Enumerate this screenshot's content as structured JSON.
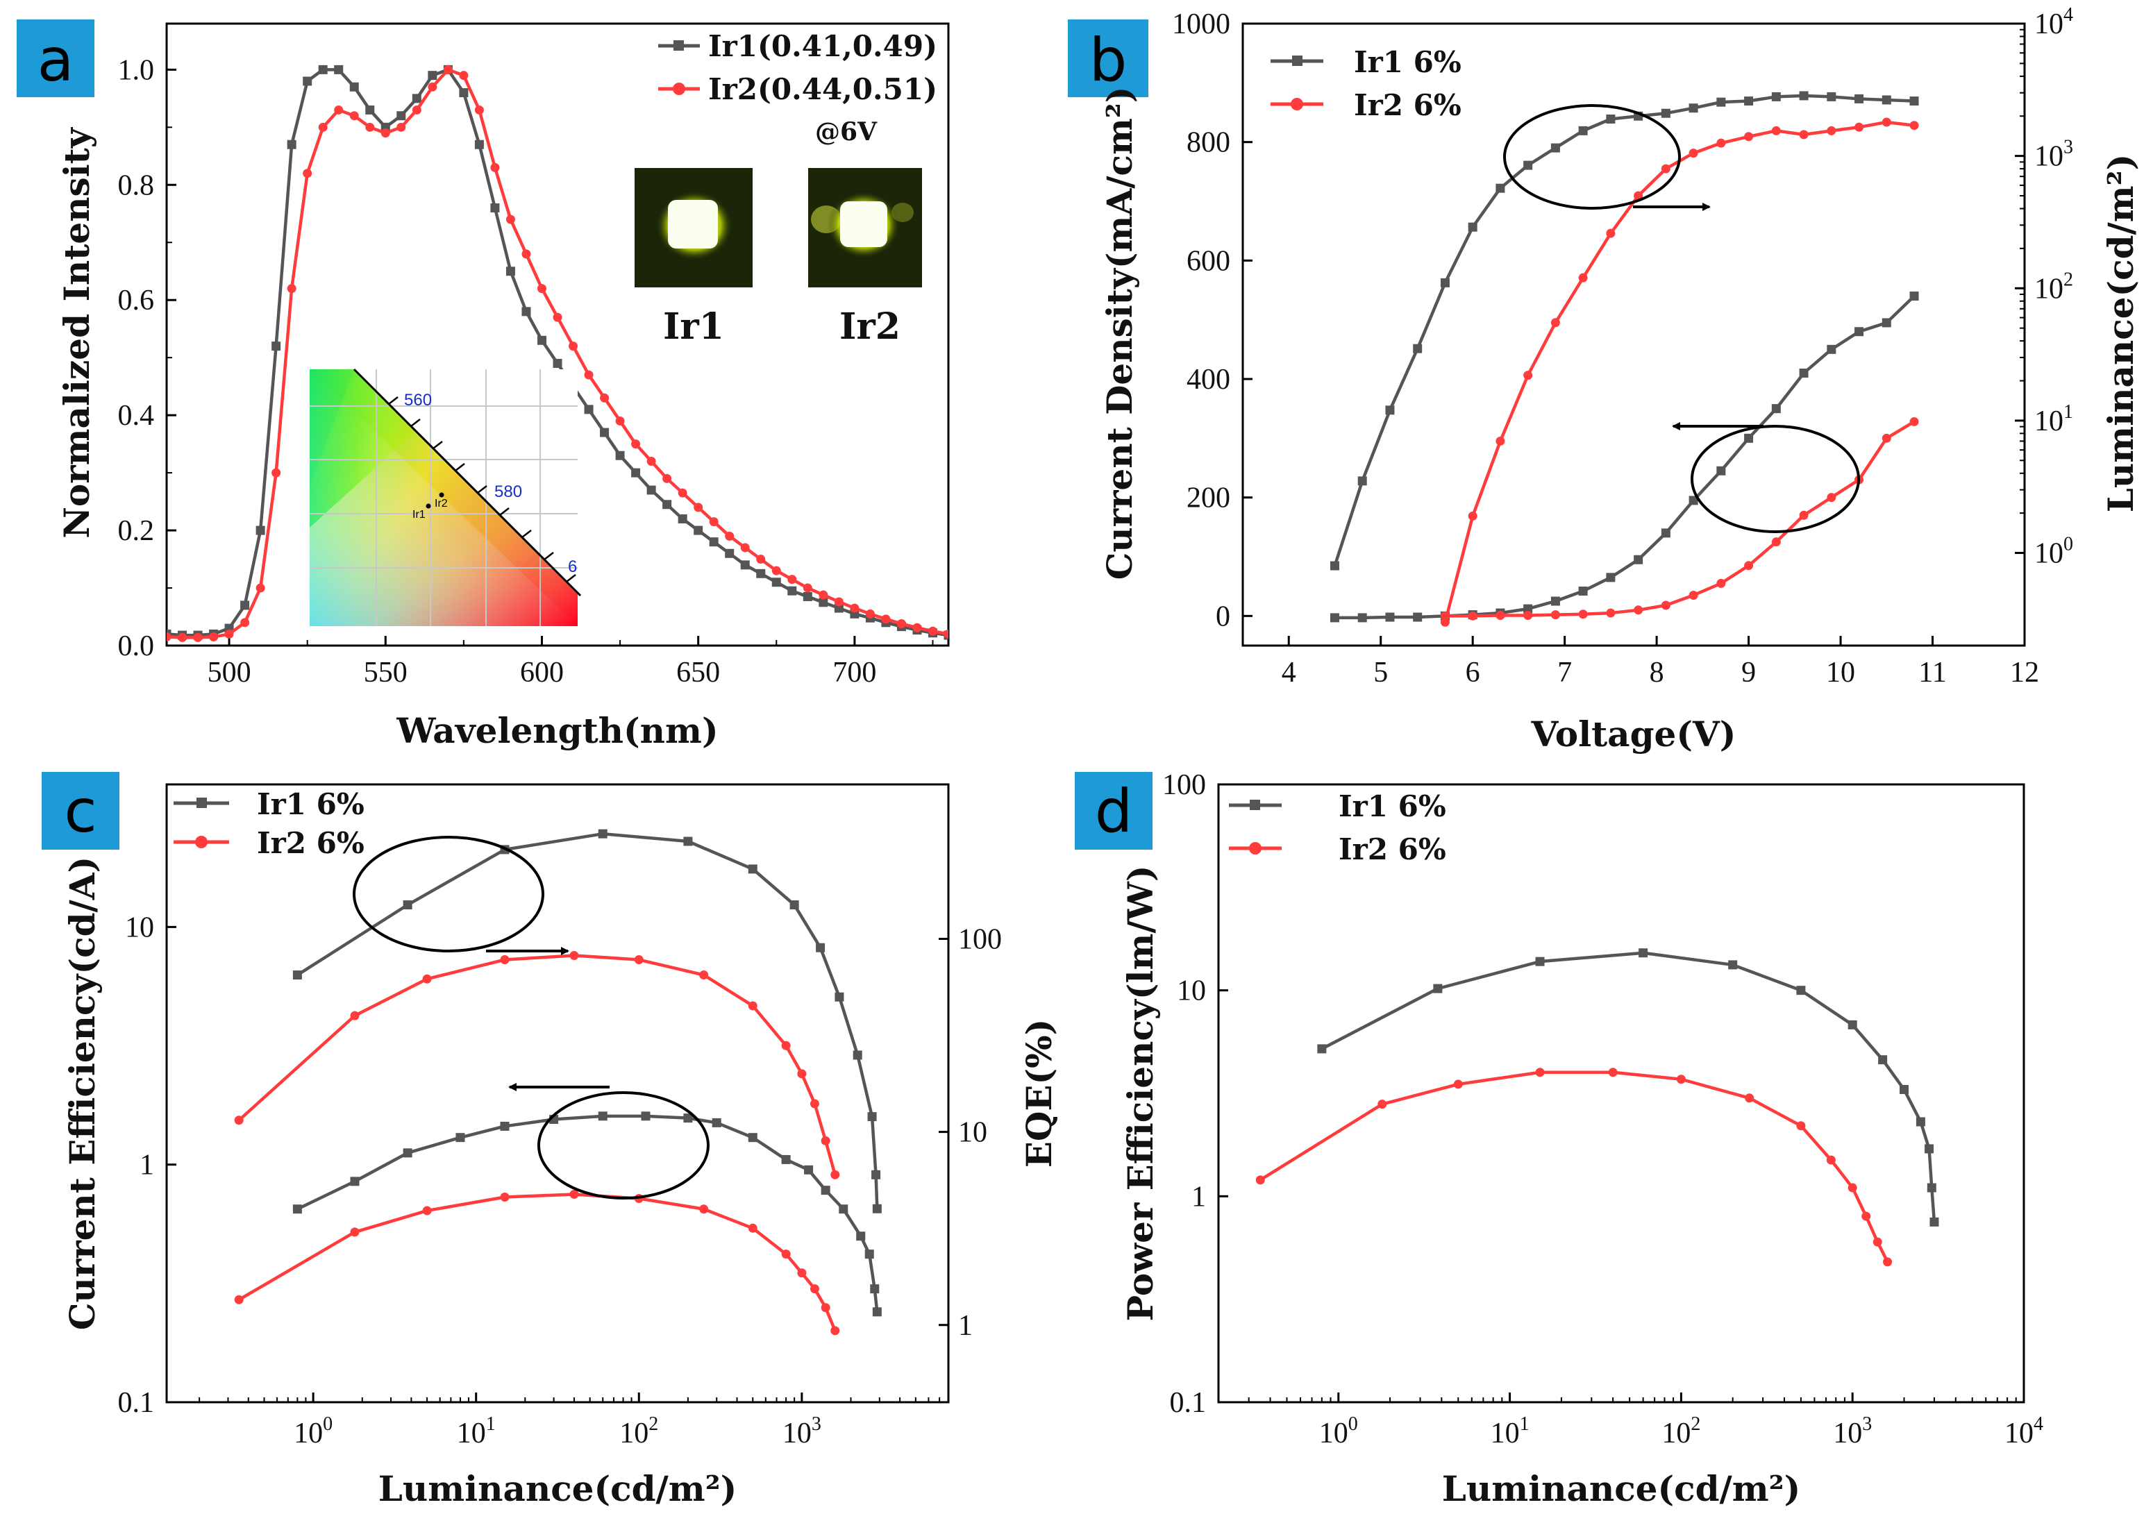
{
  "colors": {
    "ir1": "#555555",
    "ir2": "#ff3b3b",
    "badge": "#1e9bd7",
    "annotation": "#000000"
  },
  "panels": {
    "a": "a",
    "b": "b",
    "c": "c",
    "d": "d"
  },
  "chart_data": [
    {
      "id": "a",
      "type": "line",
      "xlabel": "Wavelength(nm)",
      "ylabel": "Normalized Intensity",
      "xlim": [
        480,
        730
      ],
      "ylim": [
        0,
        1.08
      ],
      "xticks": [
        500,
        550,
        600,
        650,
        700
      ],
      "yticks": [
        0.0,
        0.2,
        0.4,
        0.6,
        0.8,
        1.0
      ],
      "ytick_labels": [
        "0.0",
        "0.2",
        "0.4",
        "0.6",
        "0.8",
        "1.0"
      ],
      "legend_note": "@6V",
      "series": [
        {
          "name": "Ir1(0.41,0.49)",
          "x": [
            480,
            485,
            490,
            495,
            500,
            505,
            510,
            515,
            520,
            525,
            530,
            535,
            540,
            545,
            550,
            555,
            560,
            565,
            570,
            575,
            580,
            585,
            590,
            595,
            600,
            605,
            610,
            615,
            620,
            625,
            630,
            635,
            640,
            645,
            650,
            655,
            660,
            665,
            670,
            675,
            680,
            685,
            690,
            695,
            700,
            705,
            710,
            715,
            720,
            725,
            730
          ],
          "y": [
            0.02,
            0.018,
            0.018,
            0.02,
            0.03,
            0.07,
            0.2,
            0.52,
            0.87,
            0.98,
            1.0,
            1.0,
            0.97,
            0.93,
            0.9,
            0.92,
            0.95,
            0.99,
            1.0,
            0.96,
            0.87,
            0.76,
            0.65,
            0.58,
            0.53,
            0.49,
            0.45,
            0.41,
            0.37,
            0.33,
            0.3,
            0.27,
            0.245,
            0.22,
            0.2,
            0.18,
            0.16,
            0.14,
            0.125,
            0.11,
            0.095,
            0.085,
            0.075,
            0.065,
            0.055,
            0.048,
            0.04,
            0.033,
            0.027,
            0.022,
            0.018
          ]
        },
        {
          "name": "Ir2(0.44,0.51)",
          "x": [
            480,
            485,
            490,
            495,
            500,
            505,
            510,
            515,
            520,
            525,
            530,
            535,
            540,
            545,
            550,
            555,
            560,
            565,
            570,
            575,
            580,
            585,
            590,
            595,
            600,
            605,
            610,
            615,
            620,
            625,
            630,
            635,
            640,
            645,
            650,
            655,
            660,
            665,
            670,
            675,
            680,
            685,
            690,
            695,
            700,
            705,
            710,
            715,
            720,
            725,
            730
          ],
          "y": [
            0.015,
            0.014,
            0.014,
            0.015,
            0.02,
            0.04,
            0.1,
            0.3,
            0.62,
            0.82,
            0.9,
            0.93,
            0.92,
            0.9,
            0.89,
            0.9,
            0.93,
            0.97,
            1.0,
            0.99,
            0.93,
            0.83,
            0.74,
            0.68,
            0.62,
            0.57,
            0.52,
            0.47,
            0.43,
            0.39,
            0.35,
            0.32,
            0.29,
            0.265,
            0.24,
            0.215,
            0.19,
            0.17,
            0.15,
            0.13,
            0.115,
            0.1,
            0.088,
            0.076,
            0.065,
            0.055,
            0.046,
            0.038,
            0.031,
            0.025,
            0.02
          ]
        }
      ],
      "insets": {
        "ir1_label": "Ir1",
        "ir2_label": "Ir2",
        "cie": {
          "wavelength_labels": [
            "560",
            "580",
            "6"
          ],
          "points": [
            {
              "label": "Ir1",
              "x": 0.41,
              "y": 0.49
            },
            {
              "label": "Ir2",
              "x": 0.44,
              "y": 0.51
            }
          ]
        }
      }
    },
    {
      "id": "b",
      "type": "line",
      "xlabel": "Voltage(V)",
      "ylabel": "Current Density(mA/cm²)",
      "y2label": "Luminance(cd/m²)",
      "xlim": [
        3.5,
        12
      ],
      "ylim": [
        -50,
        1000
      ],
      "y2lim_log": [
        -0.7,
        4
      ],
      "xticks": [
        4,
        5,
        6,
        7,
        8,
        9,
        10,
        11,
        12
      ],
      "yticks": [
        0,
        200,
        400,
        600,
        800,
        1000
      ],
      "y2ticks": [
        {
          "base": "10",
          "exp": "0",
          "log": 0
        },
        {
          "base": "10",
          "exp": "1",
          "log": 1
        },
        {
          "base": "10",
          "exp": "2",
          "log": 2
        },
        {
          "base": "10",
          "exp": "3",
          "log": 3
        },
        {
          "base": "10",
          "exp": "4",
          "log": 4
        }
      ],
      "current_density": [
        {
          "name": "Ir1 6%",
          "x": [
            4.5,
            4.8,
            5.1,
            5.4,
            5.7,
            6.0,
            6.3,
            6.6,
            6.9,
            7.2,
            7.5,
            7.8,
            8.1,
            8.4,
            8.7,
            9.0,
            9.3,
            9.6,
            9.9,
            10.2,
            10.5,
            10.8
          ],
          "y": [
            -3,
            -3,
            -2,
            -2,
            0,
            2,
            5,
            12,
            25,
            42,
            65,
            95,
            140,
            195,
            245,
            300,
            350,
            410,
            450,
            480,
            495,
            540
          ]
        },
        {
          "name": "Ir2 6%",
          "x": [
            5.7,
            6.0,
            6.3,
            6.6,
            6.9,
            7.2,
            7.5,
            7.8,
            8.1,
            8.4,
            8.7,
            9.0,
            9.3,
            9.6,
            9.9,
            10.2,
            10.5,
            10.8
          ],
          "y": [
            0,
            0,
            1,
            1,
            2,
            3,
            5,
            10,
            18,
            35,
            55,
            85,
            125,
            170,
            200,
            230,
            300,
            328
          ]
        }
      ],
      "luminance": [
        {
          "name": "Ir1 6%",
          "x": [
            4.5,
            4.8,
            5.1,
            5.4,
            5.7,
            6.0,
            6.3,
            6.6,
            6.9,
            7.2,
            7.5,
            7.8,
            8.1,
            8.4,
            8.7,
            9.0,
            9.3,
            9.6,
            9.9,
            10.2,
            10.5,
            10.8
          ],
          "y": [
            0.8,
            3.5,
            12,
            35,
            110,
            290,
            570,
            850,
            1150,
            1550,
            1900,
            2000,
            2100,
            2300,
            2550,
            2600,
            2800,
            2850,
            2800,
            2700,
            2650,
            2600
          ]
        },
        {
          "name": "Ir2 6%",
          "x": [
            5.7,
            6.0,
            6.3,
            6.6,
            6.9,
            7.2,
            7.5,
            7.8,
            8.1,
            8.4,
            8.7,
            9.0,
            9.3,
            9.6,
            9.9,
            10.2,
            10.5,
            10.8
          ],
          "y": [
            0.3,
            1.9,
            7,
            22,
            55,
            120,
            260,
            500,
            800,
            1050,
            1250,
            1400,
            1550,
            1450,
            1550,
            1650,
            1800,
            1700
          ]
        }
      ]
    },
    {
      "id": "c",
      "type": "line",
      "xlabel": "Luminance(cd/m²)",
      "ylabel": "Current Efficiency(cd/A)",
      "y2label": "EQE(%)",
      "xlim_log": [
        -0.9,
        3.9
      ],
      "ylim_log": [
        -1,
        1.6
      ],
      "y2lim_log": [
        -0.4,
        2.8
      ],
      "xticks": [
        {
          "base": "10",
          "exp": "0",
          "log": 0
        },
        {
          "base": "10",
          "exp": "1",
          "log": 1
        },
        {
          "base": "10",
          "exp": "2",
          "log": 2
        },
        {
          "base": "10",
          "exp": "3",
          "log": 3
        }
      ],
      "yticks": [
        {
          "label": "0.1",
          "log": -1
        },
        {
          "label": "1",
          "log": 0
        },
        {
          "label": "10",
          "log": 1
        }
      ],
      "y2ticks": [
        {
          "label": "1",
          "log": 0
        },
        {
          "label": "10",
          "log": 1
        },
        {
          "label": "100",
          "log": 2
        }
      ],
      "current_efficiency": [
        {
          "name": "Ir1 6%",
          "x": [
            0.8,
            1.8,
            3.8,
            8,
            15,
            30,
            60,
            110,
            200,
            300,
            500,
            800,
            1100,
            1400,
            1800,
            2300,
            2600,
            2800,
            2900
          ],
          "y": [
            0.65,
            0.85,
            1.12,
            1.3,
            1.45,
            1.55,
            1.6,
            1.6,
            1.57,
            1.5,
            1.3,
            1.05,
            0.95,
            0.78,
            0.65,
            0.5,
            0.42,
            0.3,
            0.24
          ]
        },
        {
          "name": "Ir2 6%",
          "x": [
            0.35,
            1.8,
            5,
            15,
            40,
            100,
            250,
            500,
            800,
            1000,
            1200,
            1400,
            1600
          ],
          "y": [
            0.27,
            0.52,
            0.64,
            0.73,
            0.75,
            0.72,
            0.65,
            0.54,
            0.42,
            0.35,
            0.3,
            0.25,
            0.2
          ]
        }
      ],
      "eqe": [
        {
          "name": "Ir1 6%",
          "x": [
            0.8,
            3.8,
            15,
            60,
            200,
            500,
            900,
            1300,
            1700,
            2200,
            2700,
            2850,
            2900
          ],
          "y": [
            65,
            150,
            290,
            350,
            320,
            230,
            150,
            90,
            50,
            25,
            12,
            6,
            4
          ]
        },
        {
          "name": "Ir2 6%",
          "x": [
            0.35,
            1.8,
            5,
            15,
            40,
            100,
            250,
            500,
            800,
            1000,
            1200,
            1400,
            1600
          ],
          "y": [
            11.5,
            40,
            62,
            78,
            82,
            78,
            65,
            45,
            28,
            20,
            14,
            9,
            6
          ]
        }
      ],
      "legend": [
        "Ir1 6%",
        "Ir2 6%"
      ]
    },
    {
      "id": "d",
      "type": "line",
      "xlabel": "Luminance(cd/m²)",
      "ylabel": "Power Efficiency(lm/W)",
      "xlim_log": [
        -0.7,
        4
      ],
      "ylim_log": [
        -1,
        2
      ],
      "xticks": [
        {
          "base": "10",
          "exp": "0",
          "log": 0
        },
        {
          "base": "10",
          "exp": "1",
          "log": 1
        },
        {
          "base": "10",
          "exp": "2",
          "log": 2
        },
        {
          "base": "10",
          "exp": "3",
          "log": 3
        },
        {
          "base": "10",
          "exp": "4",
          "log": 4
        }
      ],
      "yticks": [
        {
          "label": "0.1",
          "log": -1
        },
        {
          "label": "1",
          "log": 0
        },
        {
          "label": "10",
          "log": 1
        },
        {
          "label": "100",
          "log": 2
        }
      ],
      "series": [
        {
          "name": "Ir1 6%",
          "x": [
            0.8,
            3.8,
            15,
            60,
            200,
            500,
            1000,
            1500,
            2000,
            2500,
            2800,
            2900,
            3000
          ],
          "y": [
            5.2,
            10.2,
            13.8,
            15.2,
            13.3,
            10,
            6.8,
            4.6,
            3.3,
            2.3,
            1.7,
            1.1,
            0.75
          ]
        },
        {
          "name": "Ir2 6%",
          "x": [
            0.35,
            1.8,
            5,
            15,
            40,
            100,
            250,
            500,
            750,
            1000,
            1200,
            1400,
            1600
          ],
          "y": [
            1.2,
            2.8,
            3.5,
            4.0,
            4.0,
            3.7,
            3.0,
            2.2,
            1.5,
            1.1,
            0.8,
            0.6,
            0.48
          ]
        }
      ]
    }
  ]
}
